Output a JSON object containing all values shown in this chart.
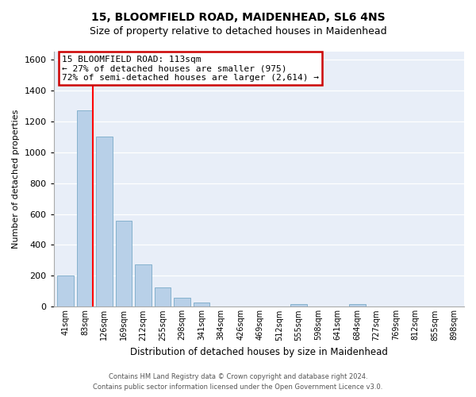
{
  "title": "15, BLOOMFIELD ROAD, MAIDENHEAD, SL6 4NS",
  "subtitle": "Size of property relative to detached houses in Maidenhead",
  "xlabel": "Distribution of detached houses by size in Maidenhead",
  "ylabel": "Number of detached properties",
  "bar_color": "#b8d0e8",
  "bar_edge_color": "#7aaac8",
  "categories": [
    "41sqm",
    "83sqm",
    "126sqm",
    "169sqm",
    "212sqm",
    "255sqm",
    "298sqm",
    "341sqm",
    "384sqm",
    "426sqm",
    "469sqm",
    "512sqm",
    "555sqm",
    "598sqm",
    "641sqm",
    "684sqm",
    "727sqm",
    "769sqm",
    "812sqm",
    "855sqm",
    "898sqm"
  ],
  "values": [
    200,
    1270,
    1100,
    555,
    275,
    125,
    60,
    28,
    0,
    0,
    0,
    0,
    15,
    0,
    0,
    15,
    0,
    0,
    0,
    0,
    0
  ],
  "ylim": [
    0,
    1650
  ],
  "yticks": [
    0,
    200,
    400,
    600,
    800,
    1000,
    1200,
    1400,
    1600
  ],
  "property_line_x": 1.425,
  "annotation_title": "15 BLOOMFIELD ROAD: 113sqm",
  "annotation_line1": "← 27% of detached houses are smaller (975)",
  "annotation_line2": "72% of semi-detached houses are larger (2,614) →",
  "footer_line1": "Contains HM Land Registry data © Crown copyright and database right 2024.",
  "footer_line2": "Contains public sector information licensed under the Open Government Licence v3.0.",
  "bg_color": "#ffffff",
  "plot_bg_color": "#e8eef8"
}
